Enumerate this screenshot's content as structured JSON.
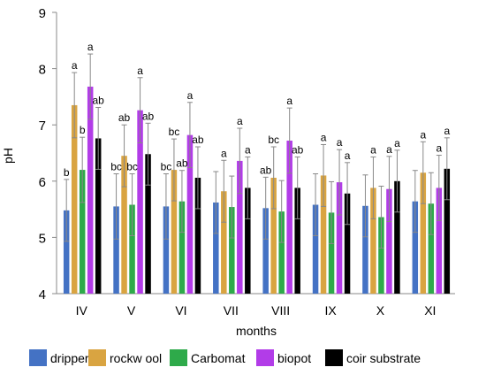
{
  "chart_data": {
    "type": "bar",
    "title": "",
    "xlabel": "months",
    "ylabel": "pH",
    "ylim": [
      4,
      9
    ],
    "yticks": [
      "4",
      "5",
      "6",
      "7",
      "8",
      "9"
    ],
    "grid": false,
    "legend_position": "bottom",
    "categories": [
      "IV",
      "V",
      "VI",
      "VII",
      "VIII",
      "IX",
      "X",
      "XI"
    ],
    "series": [
      {
        "name": "dripper",
        "color": "#4472C4",
        "values": [
          5.48,
          5.55,
          5.55,
          5.62,
          5.52,
          5.58,
          5.56,
          5.64
        ],
        "errors": [
          0.55,
          0.58,
          0.58,
          0.55,
          0.55,
          0.55,
          0.55,
          0.55
        ],
        "labels": [
          "b",
          "bc",
          "bc",
          "",
          "ab",
          "",
          "",
          ""
        ]
      },
      {
        "name": "rockw ool",
        "color": "#D9A441",
        "values": [
          7.35,
          6.45,
          6.2,
          5.82,
          6.06,
          6.1,
          5.88,
          6.15
        ],
        "errors": [
          0.58,
          0.55,
          0.55,
          0.55,
          0.55,
          0.55,
          0.55,
          0.55
        ],
        "labels": [
          "a",
          "ab",
          "bc",
          "a",
          "bc",
          "a",
          "a",
          "a"
        ]
      },
      {
        "name": "Carbomat",
        "color": "#2EAA4A",
        "values": [
          6.2,
          5.58,
          5.64,
          5.54,
          5.46,
          5.44,
          5.36,
          5.6
        ],
        "errors": [
          0.58,
          0.55,
          0.55,
          0.55,
          0.55,
          0.55,
          0.55,
          0.55
        ],
        "labels": [
          "b",
          "bc",
          "ab",
          "",
          "",
          "",
          "",
          ""
        ]
      },
      {
        "name": "biopot",
        "color": "#B23CE8",
        "values": [
          7.68,
          7.26,
          6.82,
          6.36,
          6.72,
          5.98,
          5.86,
          5.88
        ],
        "errors": [
          0.58,
          0.58,
          0.58,
          0.58,
          0.58,
          0.58,
          0.58,
          0.58
        ],
        "labels": [
          "a",
          "a",
          "a",
          "a",
          "a",
          "a",
          "a",
          "a"
        ]
      },
      {
        "name": "coir substrate",
        "color": "#000000",
        "values": [
          6.76,
          6.48,
          6.06,
          5.88,
          5.88,
          5.78,
          6.0,
          6.22
        ],
        "errors": [
          0.55,
          0.55,
          0.55,
          0.55,
          0.55,
          0.55,
          0.55,
          0.55
        ],
        "labels": [
          "ab",
          "ab",
          "ab",
          "a",
          "ab",
          "a",
          "a",
          "a"
        ]
      }
    ]
  }
}
